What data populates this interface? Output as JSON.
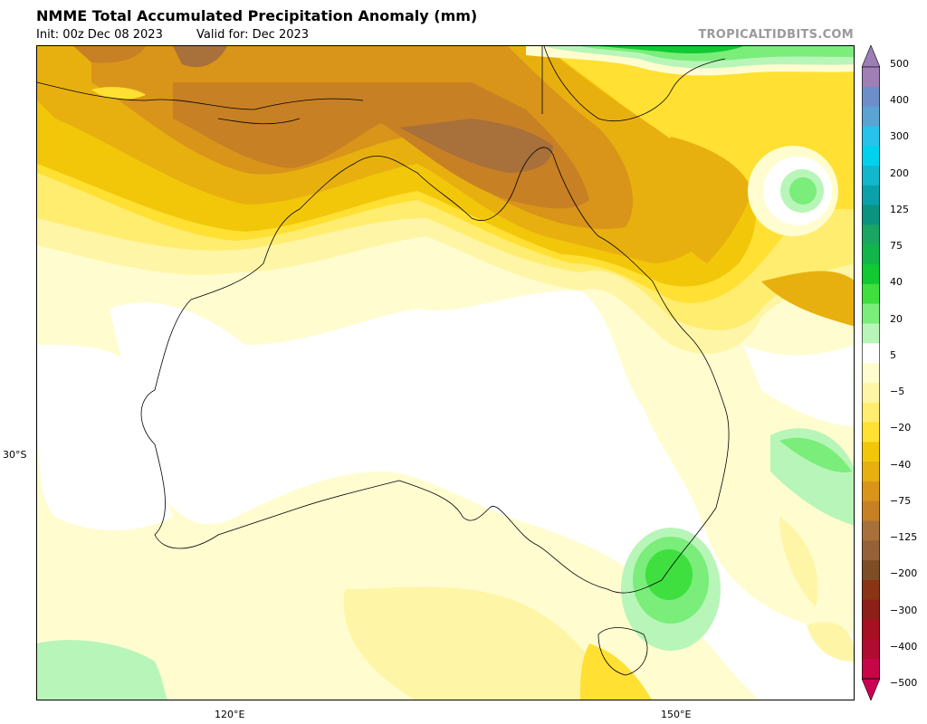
{
  "header": {
    "title": "NMME Total Accumulated Precipitation Anomaly (mm)",
    "init": "Init: 00z Dec 08 2023",
    "valid": "Valid for: Dec 2023",
    "brand": "TROPICALTIDBITS.COM"
  },
  "axes": {
    "x_ticks": [
      "120°E",
      "150°E"
    ],
    "y_ticks": [
      "30°S"
    ]
  },
  "colorbar": {
    "labels": [
      "500",
      "400",
      "300",
      "200",
      "125",
      "75",
      "40",
      "20",
      "5",
      "−5",
      "−20",
      "−40",
      "−75",
      "−125",
      "−200",
      "−300",
      "−400",
      "−500"
    ],
    "colors": [
      "#9f7fb5",
      "#6e8ec9",
      "#5aa3d3",
      "#27c3ea",
      "#00d2ee",
      "#12b7cc",
      "#0aa1aa",
      "#0a9480",
      "#19a662",
      "#12b54a",
      "#10c933",
      "#3fdf3f",
      "#7aed7a",
      "#b8f5b8",
      "#ffffff",
      "#fffdd0",
      "#fff5a6",
      "#ffed70",
      "#ffe033",
      "#f2c70a",
      "#e8b00f",
      "#d9941a",
      "#c88024",
      "#a8703a",
      "#966038",
      "#7d4d25",
      "#8a3315",
      "#8c2018",
      "#a61022",
      "#b00b31",
      "#c60646"
    ],
    "top_color": "#9c7eb4",
    "bottom_color": "#cc0050"
  }
}
